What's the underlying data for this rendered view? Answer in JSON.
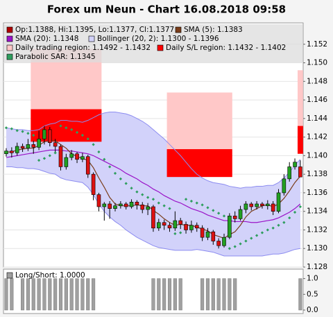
{
  "chart_data": [
    {
      "type": "candlestick",
      "title": "Forex um Neun - Chart 16.08.2018 09:58",
      "ylim": [
        1.128,
        1.1543
      ],
      "yticks": [
        1.128,
        {
          "value": 1.13,
          "label": "1.130"
        },
        1.132,
        1.134,
        1.136,
        1.138,
        {
          "value": 1.14,
          "label": "1.140"
        },
        1.142,
        1.144,
        1.146,
        1.148,
        {
          "value": 1.15,
          "label": "1.150"
        },
        1.152
      ],
      "grid": true,
      "candles": {
        "legend": "Op:1.1388, Hi:1.1395, Lo:1.1377, Cl:1.1377",
        "color": "#b00000",
        "up_color": "#22a022",
        "down_color": "#dd1111",
        "open": [
          1.1402,
          1.1405,
          1.1403,
          1.141,
          1.1408,
          1.1412,
          1.1409,
          1.1418,
          1.1428,
          1.1414,
          1.141,
          1.1388,
          1.1398,
          1.1402,
          1.1396,
          1.1399,
          1.138,
          1.1358,
          1.1345,
          1.1348,
          1.1343,
          1.1346,
          1.1348,
          1.1345,
          1.135,
          1.1347,
          1.1342,
          1.1345,
          1.1322,
          1.1328,
          1.1325,
          1.1322,
          1.133,
          1.1326,
          1.132,
          1.1325,
          1.1322,
          1.1312,
          1.1318,
          1.1308,
          1.1303,
          1.1312,
          1.1335,
          1.1332,
          1.1342,
          1.1348,
          1.1345,
          1.1348,
          1.1346,
          1.1348,
          1.134,
          1.136,
          1.1375,
          1.1388,
          1.1388
        ],
        "high": [
          1.1408,
          1.1409,
          1.1414,
          1.1413,
          1.1418,
          1.1416,
          1.1427,
          1.1432,
          1.1431,
          1.1418,
          1.1412,
          1.1402,
          1.1406,
          1.1404,
          1.1403,
          1.1401,
          1.1382,
          1.136,
          1.135,
          1.1351,
          1.1349,
          1.1351,
          1.135,
          1.1353,
          1.1352,
          1.135,
          1.1349,
          1.1347,
          1.1332,
          1.1331,
          1.1328,
          1.134,
          1.1333,
          1.1329,
          1.133,
          1.1328,
          1.1325,
          1.1322,
          1.132,
          1.1311,
          1.1316,
          1.1338,
          1.134,
          1.1346,
          1.1351,
          1.135,
          1.1351,
          1.135,
          1.1352,
          1.1351,
          1.1364,
          1.138,
          1.1393,
          1.1397,
          1.1395
        ],
        "low": [
          1.1399,
          1.1398,
          1.14,
          1.1404,
          1.1405,
          1.1402,
          1.1406,
          1.1412,
          1.141,
          1.1404,
          1.1384,
          1.1385,
          1.1395,
          1.1392,
          1.1393,
          1.1376,
          1.1352,
          1.134,
          1.133,
          1.1332,
          1.134,
          1.1343,
          1.1342,
          1.1343,
          1.1342,
          1.1338,
          1.1336,
          1.1318,
          1.1319,
          1.132,
          1.1318,
          1.1319,
          1.1321,
          1.1316,
          1.1317,
          1.1318,
          1.1308,
          1.1309,
          1.1304,
          1.13,
          1.1301,
          1.131,
          1.1328,
          1.133,
          1.1338,
          1.1341,
          1.1342,
          1.1343,
          1.1342,
          1.1336,
          1.1338,
          1.1357,
          1.1372,
          1.1385,
          1.1377
        ],
        "close": [
          1.1405,
          1.1403,
          1.141,
          1.1408,
          1.1412,
          1.1409,
          1.1418,
          1.1428,
          1.1414,
          1.141,
          1.1388,
          1.1398,
          1.1402,
          1.1396,
          1.1399,
          1.138,
          1.1358,
          1.1345,
          1.1348,
          1.1343,
          1.1346,
          1.1348,
          1.1345,
          1.135,
          1.1347,
          1.1342,
          1.1345,
          1.1322,
          1.1328,
          1.1325,
          1.1322,
          1.133,
          1.1326,
          1.132,
          1.1325,
          1.1322,
          1.1312,
          1.1318,
          1.1308,
          1.1303,
          1.1312,
          1.1335,
          1.1332,
          1.1342,
          1.1348,
          1.1345,
          1.1348,
          1.1346,
          1.1348,
          1.134,
          1.136,
          1.1375,
          1.1388,
          1.1393,
          1.1377
        ]
      },
      "sma5": {
        "legend": "SMA (5): 1.1383",
        "color": "#7a3d1a",
        "values": [
          1.1404,
          1.1404,
          1.1406,
          1.1407,
          1.1408,
          1.1408,
          1.1411,
          1.1415,
          1.1416,
          1.1416,
          1.1412,
          1.1408,
          1.1402,
          1.1399,
          1.1397,
          1.1395,
          1.1387,
          1.1376,
          1.1366,
          1.1355,
          1.1348,
          1.1346,
          1.1346,
          1.1346,
          1.1347,
          1.1346,
          1.1346,
          1.1341,
          1.1337,
          1.1332,
          1.1328,
          1.1325,
          1.1326,
          1.1325,
          1.1325,
          1.1323,
          1.1321,
          1.1319,
          1.1315,
          1.1313,
          1.1311,
          1.1315,
          1.1318,
          1.1325,
          1.1334,
          1.134,
          1.1343,
          1.1346,
          1.1347,
          1.1345,
          1.1348,
          1.1354,
          1.1362,
          1.1371,
          1.1378
        ]
      },
      "sma20": {
        "legend": "SMA (20): 1.1348",
        "color": "#9a14c8",
        "values": [
          1.1398,
          1.1399,
          1.14,
          1.1401,
          1.1402,
          1.1403,
          1.1404,
          1.1405,
          1.1406,
          1.1406,
          1.1406,
          1.1405,
          1.1405,
          1.1404,
          1.1403,
          1.1402,
          1.14,
          1.1397,
          1.1394,
          1.1391,
          1.1388,
          1.1385,
          1.1381,
          1.1378,
          1.1375,
          1.1371,
          1.1368,
          1.1364,
          1.1361,
          1.1357,
          1.1354,
          1.1351,
          1.1349,
          1.1346,
          1.1343,
          1.1341,
          1.1339,
          1.1336,
          1.1334,
          1.1332,
          1.133,
          1.133,
          1.1329,
          1.1329,
          1.1329,
          1.1328,
          1.1328,
          1.1329,
          1.133,
          1.1331,
          1.1333,
          1.1336,
          1.1339,
          1.1343,
          1.1348
        ]
      },
      "bollinger": {
        "legend": "Bollinger (20, 2): 1.1300 - 1.1396",
        "color": "#8c8cf0",
        "fill": "#d2d2fa",
        "upper": [
          1.143,
          1.1429,
          1.1428,
          1.1428,
          1.1427,
          1.1427,
          1.1428,
          1.1432,
          1.1434,
          1.1435,
          1.1438,
          1.1438,
          1.1437,
          1.1437,
          1.1436,
          1.1438,
          1.1441,
          1.1444,
          1.1446,
          1.1447,
          1.1447,
          1.1446,
          1.1445,
          1.1443,
          1.144,
          1.1437,
          1.1433,
          1.1428,
          1.1423,
          1.1418,
          1.1412,
          1.1406,
          1.14,
          1.1393,
          1.1386,
          1.138,
          1.1376,
          1.1373,
          1.1371,
          1.137,
          1.1369,
          1.1367,
          1.1366,
          1.1365,
          1.1366,
          1.1366,
          1.1367,
          1.1367,
          1.1368,
          1.1368,
          1.1371,
          1.1376,
          1.1382,
          1.139,
          1.1396
        ],
        "lower": [
          1.1388,
          1.1388,
          1.1387,
          1.1387,
          1.1386,
          1.1386,
          1.1385,
          1.1383,
          1.1381,
          1.138,
          1.1376,
          1.1374,
          1.1373,
          1.1372,
          1.1371,
          1.1366,
          1.1358,
          1.1348,
          1.134,
          1.1334,
          1.1329,
          1.1325,
          1.132,
          1.1316,
          1.1312,
          1.1309,
          1.1306,
          1.1303,
          1.1301,
          1.13,
          1.1299,
          1.1298,
          1.1298,
          1.1298,
          1.1298,
          1.1299,
          1.1298,
          1.1297,
          1.1296,
          1.1294,
          1.1292,
          1.1292,
          1.1292,
          1.1292,
          1.1292,
          1.1292,
          1.1292,
          1.1292,
          1.1293,
          1.1294,
          1.1294,
          1.1295,
          1.1297,
          1.1299,
          1.13
        ]
      },
      "trading_region": {
        "legend": "Daily trading region: 1.1492 - 1.1432",
        "color": "#ffc8c8",
        "blocks": [
          {
            "from": 5,
            "to": 17,
            "high": 1.1515,
            "low": 1.145
          },
          {
            "from": 30,
            "to": 41,
            "high": 1.1468,
            "low": 1.1407
          },
          {
            "from": 54,
            "to": 54,
            "high": 1.1492,
            "low": 1.1432
          }
        ]
      },
      "sl_region": {
        "legend": "Daily S/L region: 1.1432 - 1.1402",
        "color": "#ff0000",
        "blocks": [
          {
            "from": 5,
            "to": 17,
            "high": 1.145,
            "low": 1.1415
          },
          {
            "from": 30,
            "to": 41,
            "high": 1.1407,
            "low": 1.1377
          },
          {
            "from": 54,
            "to": 54,
            "high": 1.1432,
            "low": 1.1402
          }
        ]
      },
      "sar": {
        "legend": "Parabolic SAR: 1.1345",
        "color": "#2e9e5e",
        "values": [
          1.143,
          1.1429,
          1.1427,
          1.1426,
          1.1424,
          1.1422,
          1.1395,
          1.1397,
          1.14,
          1.1403,
          1.1432,
          1.143,
          1.1428,
          1.1425,
          1.1422,
          1.1418,
          1.1412,
          1.1404,
          1.1396,
          1.1388,
          1.1381,
          1.1375,
          1.137,
          1.1365,
          1.1361,
          1.1358,
          1.1355,
          1.1353,
          1.1349,
          1.1346,
          1.1343,
          1.1316,
          1.1317,
          1.1353,
          1.1351,
          1.1349,
          1.1347,
          1.1344,
          1.1341,
          1.1338,
          1.1335,
          1.13,
          1.1302,
          1.1305,
          1.1308,
          1.1311,
          1.1314,
          1.1317,
          1.132,
          1.1322,
          1.1325,
          1.1328,
          1.1333,
          1.1339,
          1.1345
        ]
      }
    },
    {
      "type": "bar",
      "legend": "Long/Short: 1.0000",
      "color": "#a0a0a0",
      "ylim": [
        0,
        1.3
      ],
      "yticks": [
        {
          "value": 0,
          "label": "0.0"
        },
        0.5,
        {
          "value": 1,
          "label": "1.0"
        }
      ],
      "values": [
        1,
        1,
        0,
        1,
        1,
        1,
        1,
        1,
        1,
        1,
        1,
        1,
        1,
        1,
        1,
        1,
        1,
        0,
        0,
        0,
        0,
        0,
        0,
        0,
        0,
        0,
        0,
        1,
        1,
        1,
        1,
        1,
        1,
        0,
        0,
        0,
        1,
        1,
        1,
        1,
        1,
        1,
        1,
        0,
        0,
        0,
        0,
        0,
        0,
        0,
        0,
        0,
        0,
        0,
        1
      ]
    }
  ]
}
